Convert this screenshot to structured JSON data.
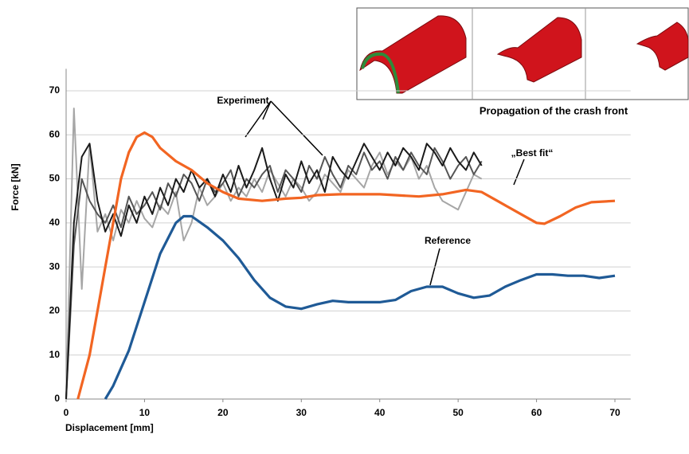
{
  "chart_data": {
    "type": "line",
    "y_label": "Force [kN]",
    "x_label": "Displacement [mm]",
    "xlim": [
      0,
      72
    ],
    "ylim": [
      0,
      75
    ],
    "xticks": [
      0,
      10,
      20,
      30,
      40,
      50,
      60,
      70
    ],
    "yticks": [
      0,
      10,
      20,
      30,
      40,
      50,
      60,
      70
    ],
    "grid": true,
    "annotations": [
      "Experiment",
      "„Best fit“",
      "Reference",
      "Propagation of the crash front"
    ],
    "series": [
      {
        "color": "#a6a6a6",
        "x": [
          0,
          1,
          2,
          3,
          4,
          5,
          6,
          7,
          8,
          9,
          10,
          11,
          12,
          13,
          14,
          15,
          16,
          17,
          18,
          19,
          20,
          21,
          22,
          23,
          24,
          25,
          26,
          27,
          28,
          29,
          30,
          31,
          32,
          33,
          34,
          35,
          36,
          37,
          38,
          39,
          40,
          41,
          42,
          43,
          44,
          45,
          46,
          47,
          48,
          49,
          50,
          51,
          52,
          53
        ],
        "values": [
          0,
          66,
          25,
          58,
          38,
          42,
          36,
          43,
          40,
          45,
          41,
          39,
          44,
          42,
          47,
          36,
          40,
          48,
          44,
          46,
          49,
          45,
          48,
          46,
          50,
          47,
          52,
          49,
          46,
          50,
          48,
          45,
          47,
          51,
          49,
          47,
          52,
          50,
          48,
          53,
          56,
          51,
          54,
          52,
          55,
          50,
          53,
          48,
          45,
          44,
          43,
          47,
          51,
          50
        ]
      },
      {
        "color": "#555555",
        "x": [
          0,
          1,
          2,
          3,
          4,
          5,
          6,
          7,
          8,
          9,
          10,
          11,
          12,
          13,
          14,
          15,
          16,
          17,
          18,
          19,
          20,
          21,
          22,
          23,
          24,
          25,
          26,
          27,
          28,
          29,
          30,
          31,
          32,
          33,
          34,
          35,
          36,
          37,
          38,
          39,
          40,
          41,
          42,
          43,
          44,
          45,
          46,
          47,
          48,
          49,
          50,
          51,
          52,
          53
        ],
        "values": [
          0,
          35,
          50,
          45,
          42,
          40,
          44,
          39,
          46,
          42,
          44,
          47,
          43,
          49,
          46,
          51,
          49,
          45,
          50,
          47,
          49,
          52,
          46,
          50,
          48,
          51,
          53,
          47,
          52,
          50,
          47,
          53,
          50,
          55,
          51,
          48,
          53,
          51,
          56,
          52,
          54,
          50,
          55,
          52,
          56,
          53,
          51,
          57,
          54,
          50,
          53,
          55,
          51,
          54
        ]
      },
      {
        "color": "#1a1a1a",
        "x": [
          0,
          1,
          2,
          3,
          4,
          5,
          6,
          7,
          8,
          9,
          10,
          11,
          12,
          13,
          14,
          15,
          16,
          17,
          18,
          19,
          20,
          21,
          22,
          23,
          24,
          25,
          26,
          27,
          28,
          29,
          30,
          31,
          32,
          33,
          34,
          35,
          36,
          37,
          38,
          39,
          40,
          41,
          42,
          43,
          44,
          45,
          46,
          47,
          48,
          49,
          50,
          51,
          52,
          53
        ],
        "values": [
          0,
          40,
          55,
          58,
          45,
          38,
          42,
          37,
          44,
          40,
          46,
          42,
          48,
          44,
          50,
          47,
          52,
          48,
          50,
          46,
          51,
          47,
          53,
          48,
          52,
          57,
          50,
          45,
          51,
          48,
          54,
          49,
          52,
          47,
          55,
          52,
          50,
          54,
          58,
          55,
          52,
          56,
          53,
          57,
          55,
          52,
          58,
          56,
          53,
          57,
          54,
          52,
          56,
          53
        ]
      },
      {
        "color": "#f26522",
        "x": [
          1.5,
          3,
          4,
          5,
          6,
          7,
          8,
          9,
          10,
          11,
          12,
          14,
          16,
          18,
          20,
          22,
          25,
          28,
          30,
          32,
          35,
          40,
          45,
          48,
          51,
          53,
          55,
          58,
          60,
          61,
          63,
          65,
          67,
          70
        ],
        "values": [
          0,
          10,
          20,
          30,
          40,
          50,
          56,
          59.5,
          60.5,
          59.5,
          57,
          54,
          52,
          49,
          47,
          45.5,
          45,
          45.5,
          45.7,
          46.3,
          46.5,
          46.5,
          46,
          46.5,
          47.5,
          47,
          45,
          42,
          40,
          39.8,
          41.5,
          43.5,
          44.7,
          45
        ]
      },
      {
        "color": "#1f5a96",
        "x": [
          5,
          6,
          8,
          10,
          12,
          14,
          15,
          16,
          18,
          20,
          22,
          24,
          26,
          28,
          30,
          32,
          34,
          36,
          40,
          42,
          44,
          46,
          48,
          50,
          52,
          54,
          56,
          58,
          60,
          62,
          64,
          66,
          68,
          70
        ],
        "values": [
          0,
          3,
          11,
          22,
          33,
          40,
          41.5,
          41.5,
          39,
          36,
          32,
          27,
          23,
          21,
          20.5,
          21.5,
          22.3,
          22,
          22,
          22.5,
          24.5,
          25.5,
          25.5,
          24,
          23,
          23.5,
          25.5,
          27,
          28.3,
          28.3,
          28,
          28,
          27.5,
          28
        ]
      }
    ]
  }
}
